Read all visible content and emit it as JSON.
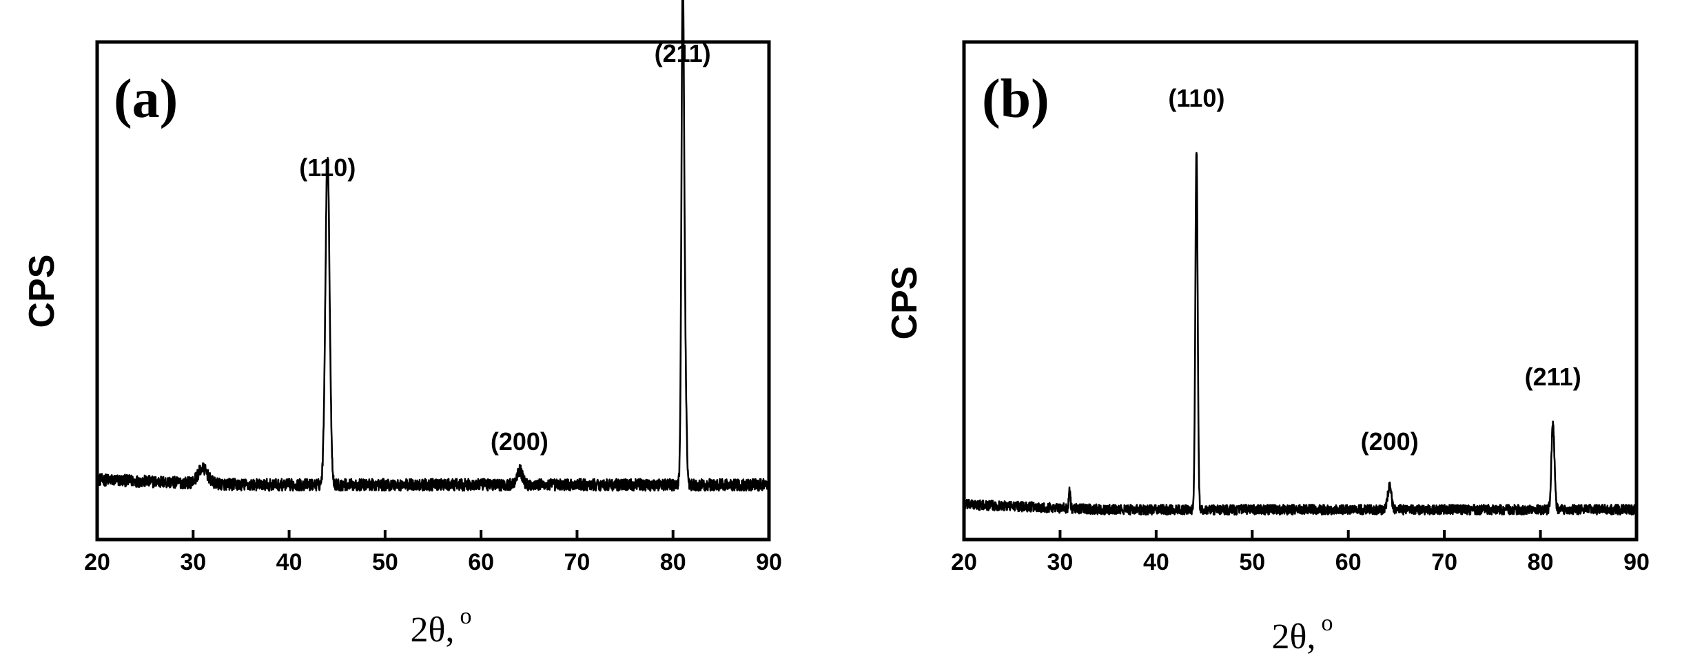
{
  "chart_data": [
    {
      "type": "line",
      "panel_label": "(a)",
      "xlabel": "2θ,",
      "xlabel_superscript": "o",
      "ylabel": "CPS",
      "xlim": [
        20,
        90
      ],
      "ylim": [
        0,
        100
      ],
      "xticks": [
        20,
        30,
        40,
        50,
        60,
        70,
        80,
        90
      ],
      "y_tick_labels": false,
      "baseline": 11,
      "noise": 1.2,
      "peaks": [
        {
          "x": 31.0,
          "y": 3,
          "width": 0.5
        },
        {
          "x": 44.0,
          "y": 66,
          "width": 0.22
        },
        {
          "x": 64.0,
          "y": 3,
          "width": 0.3
        },
        {
          "x": 81.0,
          "y": 89,
          "width": 0.13
        },
        {
          "x": 81.2,
          "y": 30,
          "width": 0.16
        }
      ],
      "annotations": [
        {
          "text": "(110)",
          "x": 44.0,
          "y": 73
        },
        {
          "text": "(200)",
          "x": 64.0,
          "y": 18
        },
        {
          "text": "(211)",
          "x": 81.0,
          "y": 96
        }
      ],
      "series": [
        {
          "x": [
            20,
            31,
            44,
            64,
            81,
            90
          ],
          "y": [
            12,
            14,
            77,
            14,
            100,
            11
          ]
        }
      ]
    },
    {
      "type": "line",
      "panel_label": "(b)",
      "xlabel": "2θ,",
      "xlabel_superscript": "o",
      "ylabel": "CPS",
      "xlim": [
        20,
        90
      ],
      "ylim": [
        0,
        100
      ],
      "xticks": [
        20,
        30,
        40,
        50,
        60,
        70,
        80,
        90
      ],
      "y_tick_labels": false,
      "baseline": 6,
      "noise": 1.0,
      "peaks": [
        {
          "x": 31.0,
          "y": 4,
          "width": 0.08
        },
        {
          "x": 44.2,
          "y": 72,
          "width": 0.12
        },
        {
          "x": 64.3,
          "y": 5,
          "width": 0.18
        },
        {
          "x": 81.3,
          "y": 17,
          "width": 0.16
        }
      ],
      "annotations": [
        {
          "text": "(110)",
          "x": 44.2,
          "y": 87
        },
        {
          "text": "(200)",
          "x": 64.3,
          "y": 18
        },
        {
          "text": "(211)",
          "x": 81.3,
          "y": 31
        }
      ],
      "series": [
        {
          "x": [
            20,
            31,
            44.2,
            64.3,
            81.3,
            90
          ],
          "y": [
            10,
            12,
            80,
            12,
            24,
            6
          ]
        }
      ]
    }
  ]
}
